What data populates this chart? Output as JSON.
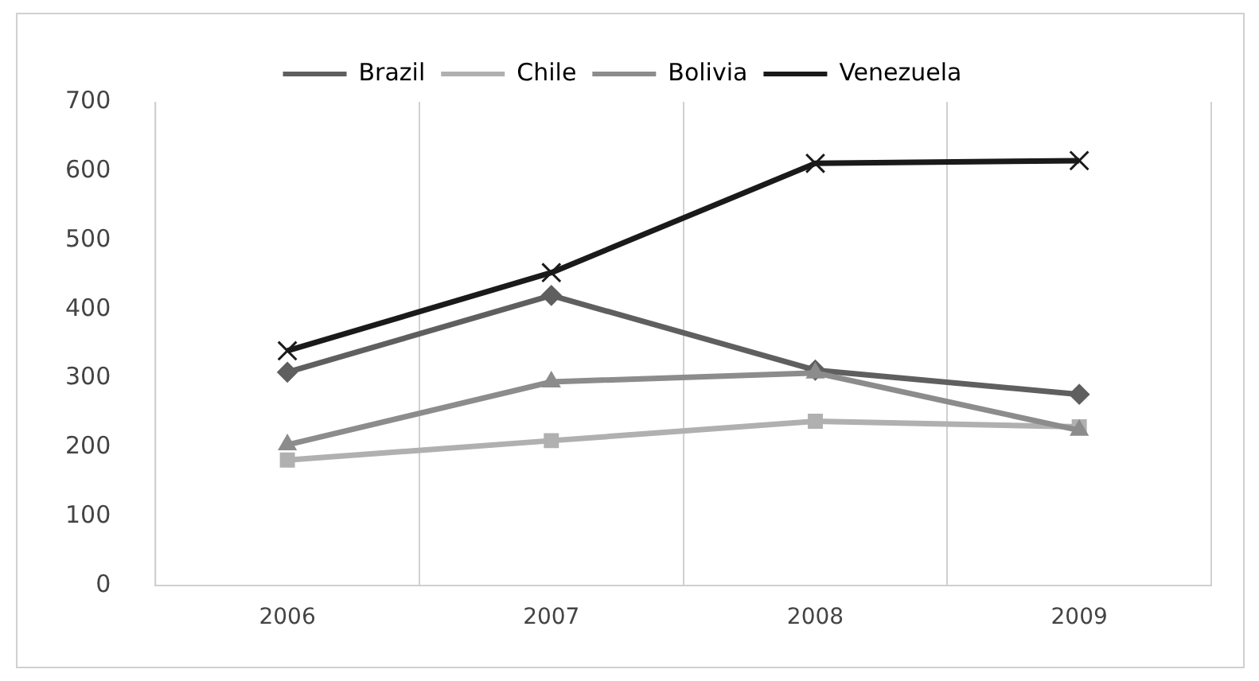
{
  "chart_data": {
    "type": "line",
    "categories": [
      "2006",
      "2007",
      "2008",
      "2009"
    ],
    "series": [
      {
        "name": "Brazil",
        "color": "#5f5f5f",
        "marker": "diamond",
        "values": [
          309,
          420,
          312,
          277
        ]
      },
      {
        "name": "Chile",
        "color": "#b0b0b0",
        "marker": "square",
        "values": [
          182,
          210,
          238,
          230
        ]
      },
      {
        "name": "Bolivia",
        "color": "#8c8c8c",
        "marker": "triangle",
        "values": [
          204,
          295,
          308,
          225
        ]
      },
      {
        "name": "Venezuela",
        "color": "#1a1a1a",
        "marker": "cross",
        "values": [
          340,
          453,
          611,
          615
        ]
      }
    ],
    "ylim": [
      0,
      700
    ],
    "yticks": [
      0,
      100,
      200,
      300,
      400,
      500,
      600,
      700
    ],
    "grid": "x",
    "legend": "top"
  }
}
